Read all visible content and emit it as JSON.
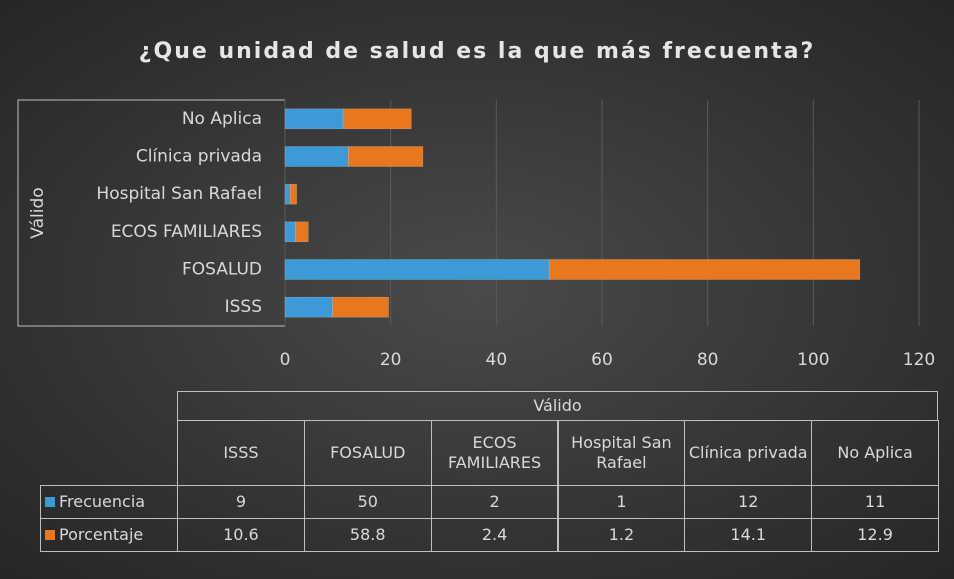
{
  "chart_data": {
    "type": "bar",
    "orientation": "horizontal",
    "stacked": true,
    "title": "¿Que unidad de salud es la que más frecuenta?",
    "group_label": "Válido",
    "categories": [
      "ISSS",
      "FOSALUD",
      "ECOS FAMILIARES",
      "Hospital San Rafael",
      "Clínica privada",
      "No Aplica"
    ],
    "series": [
      {
        "name": "Frecuencia",
        "color": "#3d9ad8",
        "values": [
          9,
          50,
          2,
          1,
          12,
          11
        ]
      },
      {
        "name": "Porcentaje",
        "color": "#e8771e",
        "values": [
          10.6,
          58.8,
          2.4,
          1.2,
          14.1,
          12.9
        ]
      }
    ],
    "xlim": [
      0,
      120
    ],
    "xticks": [
      0,
      20,
      40,
      60,
      80,
      100,
      120
    ],
    "grid": true,
    "data_table": true
  }
}
